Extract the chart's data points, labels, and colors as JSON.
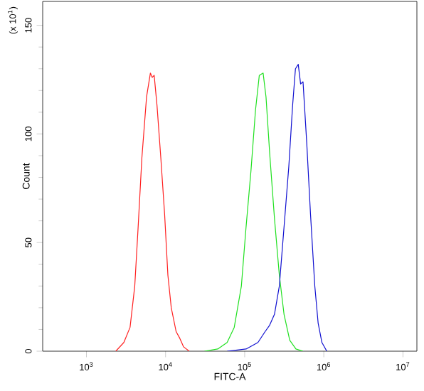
{
  "chart_data": {
    "type": "line",
    "xlabel": "FITC-A",
    "ylabel": "Count",
    "annotations": [
      "(x 10$^{1}$)"
    ],
    "log": "x",
    "xlim": [
      280,
      15000000
    ],
    "ylim": [
      0,
      161
    ],
    "xticks": [
      {
        "value": 1000,
        "label": "10$^{3}$"
      },
      {
        "value": 10000,
        "label": "10$^{4}$"
      },
      {
        "value": 100000,
        "label": "10$^{5}$"
      },
      {
        "value": 1000000,
        "label": "10$^{6}$"
      },
      {
        "value": 10000000,
        "label": "10$^{7}$"
      }
    ],
    "yticks": [
      0,
      50,
      100,
      150
    ],
    "series": [
      {
        "color": "#ff2020",
        "x": [
          2350,
          2970,
          3560,
          4080,
          4500,
          5020,
          5750,
          6430,
          6790,
          7180,
          7800,
          8710,
          9730,
          10700,
          11800,
          13600,
          15100,
          16900,
          19900
        ],
        "values": [
          0,
          4,
          11,
          30,
          57,
          89,
          117,
          128,
          126,
          127,
          113,
          89,
          63,
          35,
          20,
          9,
          6,
          2,
          0
        ]
      },
      {
        "color": "#20e020",
        "x": [
          31000,
          45600,
          60000,
          73800,
          90800,
          104000,
          120000,
          137000,
          153000,
          171000,
          186000,
          207000,
          238000,
          274000,
          314000,
          371000,
          444000,
          546000
        ],
        "values": [
          0,
          1,
          4,
          11,
          30,
          57,
          83,
          111,
          127,
          128,
          117,
          91,
          61,
          35,
          17,
          5,
          1,
          0
        ]
      },
      {
        "color": "#1010d0",
        "x": [
          60000,
          104000,
          147000,
          181000,
          207000,
          238000,
          274000,
          314000,
          361000,
          403000,
          438000,
          475000,
          509000,
          546000,
          608000,
          679000,
          769000,
          847000,
          946000,
          1090000
        ],
        "values": [
          0,
          1,
          4,
          9,
          12,
          17,
          30,
          57,
          85,
          113,
          130,
          132,
          123,
          124,
          96,
          63,
          30,
          13,
          4,
          0
        ]
      }
    ]
  }
}
